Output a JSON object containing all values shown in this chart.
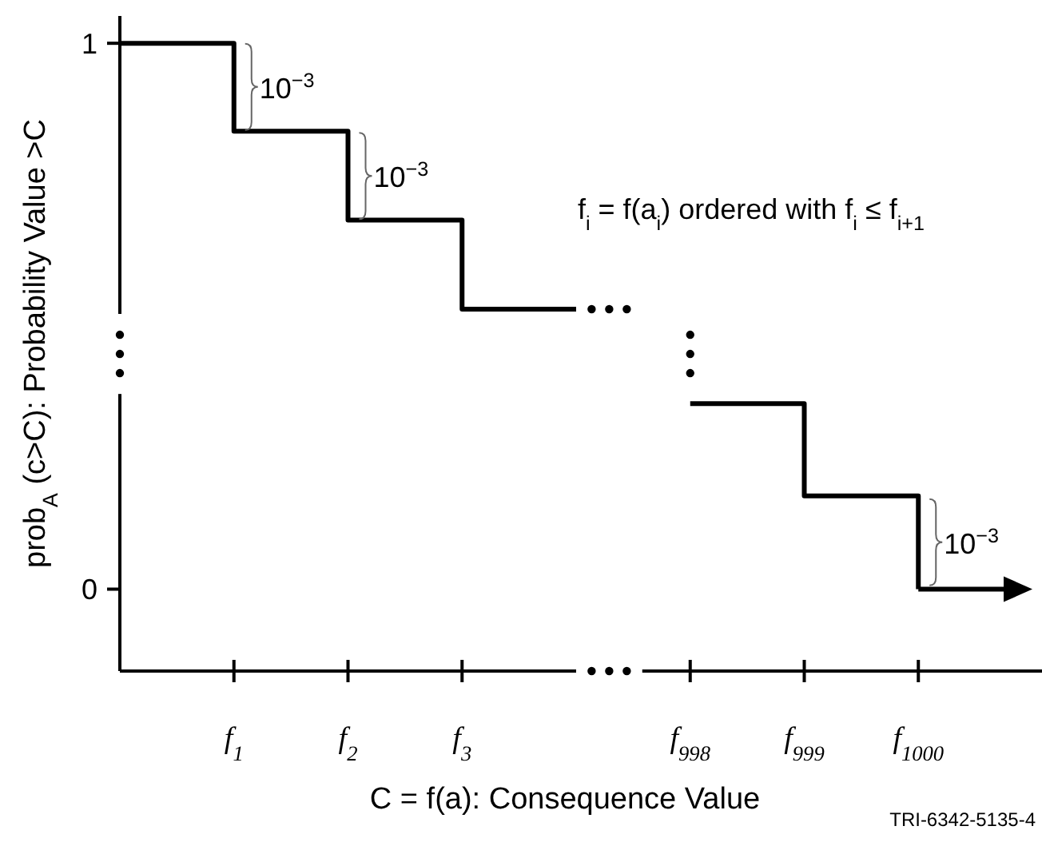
{
  "chart_data": {
    "type": "step",
    "xlabel": "C = f(a): Consequence Value",
    "ylabel": "prob$_{A}$ (c>C): Probability Value >C",
    "categories": [
      null,
      "f$_{1}$",
      "f$_{2}$",
      "f$_{3}$",
      null,
      "f$_{998}$",
      "f$_{999}$",
      "f$_{1000}$",
      null
    ],
    "ylim": [
      -0.15,
      1.05
    ],
    "yticks": [
      0,
      1
    ],
    "series": [
      {
        "color": "#000000",
        "values": [
          1,
          0.839,
          0.676,
          0.513,
          0.513,
          null,
          null,
          null,
          null
        ]
      },
      {
        "color": "#000000",
        "values": [
          null,
          null,
          null,
          null,
          null,
          0.34,
          0.171,
          0,
          null
        ]
      }
    ],
    "grid": false,
    "marker": "none",
    "line_style": "solid",
    "annotations": [
      {
        "text": "10$^{−3}$",
        "x": "f$_{1}$",
        "y": 0.92
      },
      {
        "text": "10$^{−3}$",
        "x": "f$_{2}$",
        "y": 0.757
      },
      {
        "text": "10$^{−3}$",
        "x": "f$_{1000}$",
        "y": 0.086
      },
      "f$_{i}$ = f(a$_{i}$) ordered with f$_{i}$ ≤ f$_{i+1}$",
      "TRI-6342-5135-4"
    ]
  }
}
